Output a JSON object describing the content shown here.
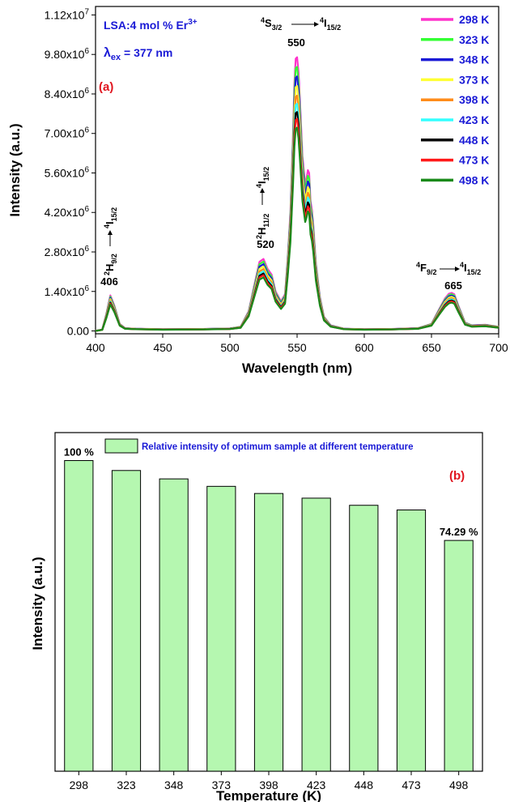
{
  "chart_data": [
    {
      "type": "line",
      "panel_label": "(a)",
      "sample_label": "LSA:4 mol % Er",
      "sample_superscript": "3+",
      "excitation_label": "λ",
      "excitation_sub": "ex",
      "excitation_value": " = 377 nm",
      "xlabel": "Wavelength (nm)",
      "ylabel": "Intensity (a.u.)",
      "xlim": [
        400,
        700
      ],
      "ylim": [
        -100000,
        11500000
      ],
      "x_ticks": [
        "400",
        "450",
        "500",
        "550",
        "600",
        "650",
        "700"
      ],
      "y_ticks": [
        {
          "value": 0,
          "label": "0.00"
        },
        {
          "value": 1400000,
          "label": "1.40x10",
          "exp": "6"
        },
        {
          "value": 2800000,
          "label": "2.80x10",
          "exp": "6"
        },
        {
          "value": 4200000,
          "label": "4.20x10",
          "exp": "6"
        },
        {
          "value": 5600000,
          "label": "5.60x10",
          "exp": "6"
        },
        {
          "value": 7000000,
          "label": "7.00x10",
          "exp": "6"
        },
        {
          "value": 8400000,
          "label": "8.40x10",
          "exp": "6"
        },
        {
          "value": 9800000,
          "label": "9.80x10",
          "exp": "6"
        },
        {
          "value": 11200000,
          "label": "1.12x10",
          "exp": "7"
        }
      ],
      "peaks": [
        {
          "wavelength": 406,
          "label": "406",
          "transition_top": "2H9/2",
          "transition_bottom": "4I15/2"
        },
        {
          "wavelength": 520,
          "label": "520",
          "transition_top": "2H11/2",
          "transition_bottom": "4I15/2"
        },
        {
          "wavelength": 550,
          "label": "550",
          "transition_top": "4S3/2",
          "transition_bottom": "4I15/2"
        },
        {
          "wavelength": 665,
          "label": "665",
          "transition_top": "4F9/2",
          "transition_bottom": "4I15/2"
        }
      ],
      "series": [
        {
          "name": "298 K",
          "color": "#ff33cc",
          "scale": 1.0
        },
        {
          "name": "323 K",
          "color": "#33ff33",
          "scale": 0.965
        },
        {
          "name": "348 K",
          "color": "#1a1ad6",
          "scale": 0.93
        },
        {
          "name": "373 K",
          "color": "#ffff33",
          "scale": 0.895
        },
        {
          "name": "398 K",
          "color": "#ff8c1a",
          "scale": 0.86
        },
        {
          "name": "423 K",
          "color": "#33ffff",
          "scale": 0.83
        },
        {
          "name": "448 K",
          "color": "#000000",
          "scale": 0.8
        },
        {
          "name": "473 K",
          "color": "#ff1a1a",
          "scale": 0.775
        },
        {
          "name": "498 K",
          "color": "#1a8a1a",
          "scale": 0.7429
        }
      ],
      "profile": {
        "x": [
          400,
          405,
          408,
          411,
          414,
          418,
          422,
          430,
          450,
          480,
          500,
          508,
          514,
          519,
          522,
          525,
          528,
          531,
          534,
          538,
          541,
          543,
          545,
          547,
          548,
          549,
          550,
          551,
          552,
          554,
          556,
          557,
          558,
          559,
          560,
          561,
          562,
          564,
          567,
          570,
          575,
          585,
          600,
          620,
          640,
          650,
          656,
          660,
          663,
          665,
          667,
          670,
          675,
          680,
          690,
          700
        ],
        "y": [
          0,
          50000,
          600000,
          1260000,
          900000,
          250000,
          100000,
          80000,
          60000,
          70000,
          90000,
          150000,
          700000,
          1800000,
          2450000,
          2550000,
          2200000,
          2000000,
          1400000,
          1050000,
          1300000,
          2600000,
          4200000,
          7000000,
          8800000,
          9650000,
          9700000,
          9200000,
          8300000,
          6200000,
          5200000,
          5400000,
          5700000,
          5600000,
          4600000,
          4300000,
          3800000,
          2400000,
          1200000,
          500000,
          200000,
          80000,
          60000,
          70000,
          100000,
          250000,
          800000,
          1150000,
          1320000,
          1350000,
          1300000,
          900000,
          300000,
          200000,
          220000,
          150000
        ]
      }
    },
    {
      "type": "bar",
      "panel_label": "(b)",
      "legend_label": "Relative intensity of optimum sample at different temperature",
      "xlabel": "Temperature (K)",
      "ylabel": "Intensity (a.u.)",
      "categories": [
        "298",
        "323",
        "348",
        "373",
        "398",
        "423",
        "448",
        "473",
        "498"
      ],
      "values": [
        100,
        96.8,
        94.1,
        91.7,
        89.4,
        87.9,
        85.6,
        84.1,
        74.29
      ],
      "ylim": [
        0,
        109
      ],
      "bar_color": "#b5f7b0",
      "annotations": [
        {
          "category": "298",
          "text": "100 %"
        },
        {
          "category": "498",
          "text": "74.29 %"
        }
      ]
    }
  ]
}
